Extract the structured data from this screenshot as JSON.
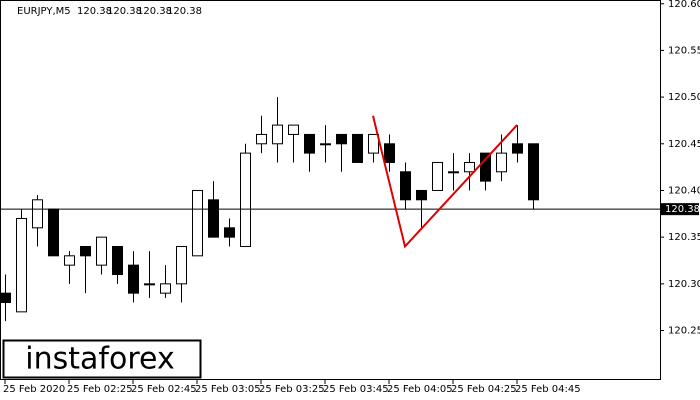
{
  "chart_data": {
    "type": "candlestick",
    "symbol": "EURJPY,M5",
    "header_values": [
      120.38,
      120.38,
      120.38,
      120.38
    ],
    "watermark": "instaforex",
    "categories": [
      "25 Feb 2020",
      null,
      null,
      null,
      "25 Feb 02:25",
      null,
      null,
      null,
      "25 Feb 02:45",
      null,
      null,
      null,
      "25 Feb 03:05",
      null,
      null,
      null,
      "25 Feb 03:25",
      null,
      null,
      null,
      "25 Feb 03:45",
      null,
      null,
      null,
      "25 Feb 04:05",
      null,
      null,
      null,
      "25 Feb 04:25",
      null,
      null,
      null,
      "25 Feb 04:45",
      null
    ],
    "open": [
      120.29,
      120.27,
      120.36,
      120.38,
      120.32,
      120.34,
      120.32,
      120.34,
      120.32,
      120.3,
      120.29,
      120.3,
      120.33,
      120.39,
      120.36,
      120.34,
      120.45,
      120.45,
      120.46,
      120.46,
      120.45,
      120.46,
      120.46,
      120.44,
      120.45,
      120.42,
      120.4,
      120.4,
      120.42,
      120.42,
      120.44,
      120.42,
      120.45,
      120.45
    ],
    "high": [
      120.31,
      120.38,
      120.395,
      120.38,
      120.335,
      120.34,
      120.35,
      120.34,
      120.335,
      120.335,
      120.32,
      120.34,
      120.4,
      120.41,
      120.37,
      120.45,
      120.48,
      120.5,
      120.47,
      120.46,
      120.47,
      120.46,
      120.46,
      120.46,
      120.46,
      120.43,
      120.4,
      120.43,
      120.44,
      120.44,
      120.44,
      120.46,
      120.47,
      120.45
    ],
    "low": [
      120.26,
      120.27,
      120.34,
      120.33,
      120.3,
      120.29,
      120.31,
      120.3,
      120.28,
      120.285,
      120.285,
      120.28,
      120.33,
      120.35,
      120.34,
      120.34,
      120.44,
      120.43,
      120.43,
      120.42,
      120.43,
      120.42,
      120.43,
      120.43,
      120.42,
      120.38,
      120.36,
      120.4,
      120.4,
      120.4,
      120.4,
      120.41,
      120.43,
      120.38
    ],
    "close": [
      120.28,
      120.37,
      120.39,
      120.33,
      120.33,
      120.33,
      120.35,
      120.31,
      120.29,
      120.3,
      120.3,
      120.34,
      120.4,
      120.35,
      120.35,
      120.44,
      120.46,
      120.47,
      120.47,
      120.44,
      120.45,
      120.45,
      120.43,
      120.46,
      120.43,
      120.39,
      120.39,
      120.43,
      120.42,
      120.43,
      120.41,
      120.44,
      120.44,
      120.39
    ],
    "last_price": 120.38,
    "pattern": {
      "color": "#e00000",
      "x": [
        23,
        25,
        32
      ],
      "prices": [
        120.48,
        120.34,
        120.47
      ]
    },
    "ylim": [
      120.197,
      120.604
    ],
    "yticks": [
      120.25,
      {
        "value": 120.3,
        "label": "120.30"
      },
      120.35,
      {
        "value": 120.4,
        "label": "120.40"
      },
      120.45,
      {
        "value": 120.5,
        "label": "120.50"
      },
      120.55,
      {
        "value": 120.6,
        "label": "120.60"
      }
    ],
    "up_color": "#ffffff",
    "down_color": "#000000"
  }
}
